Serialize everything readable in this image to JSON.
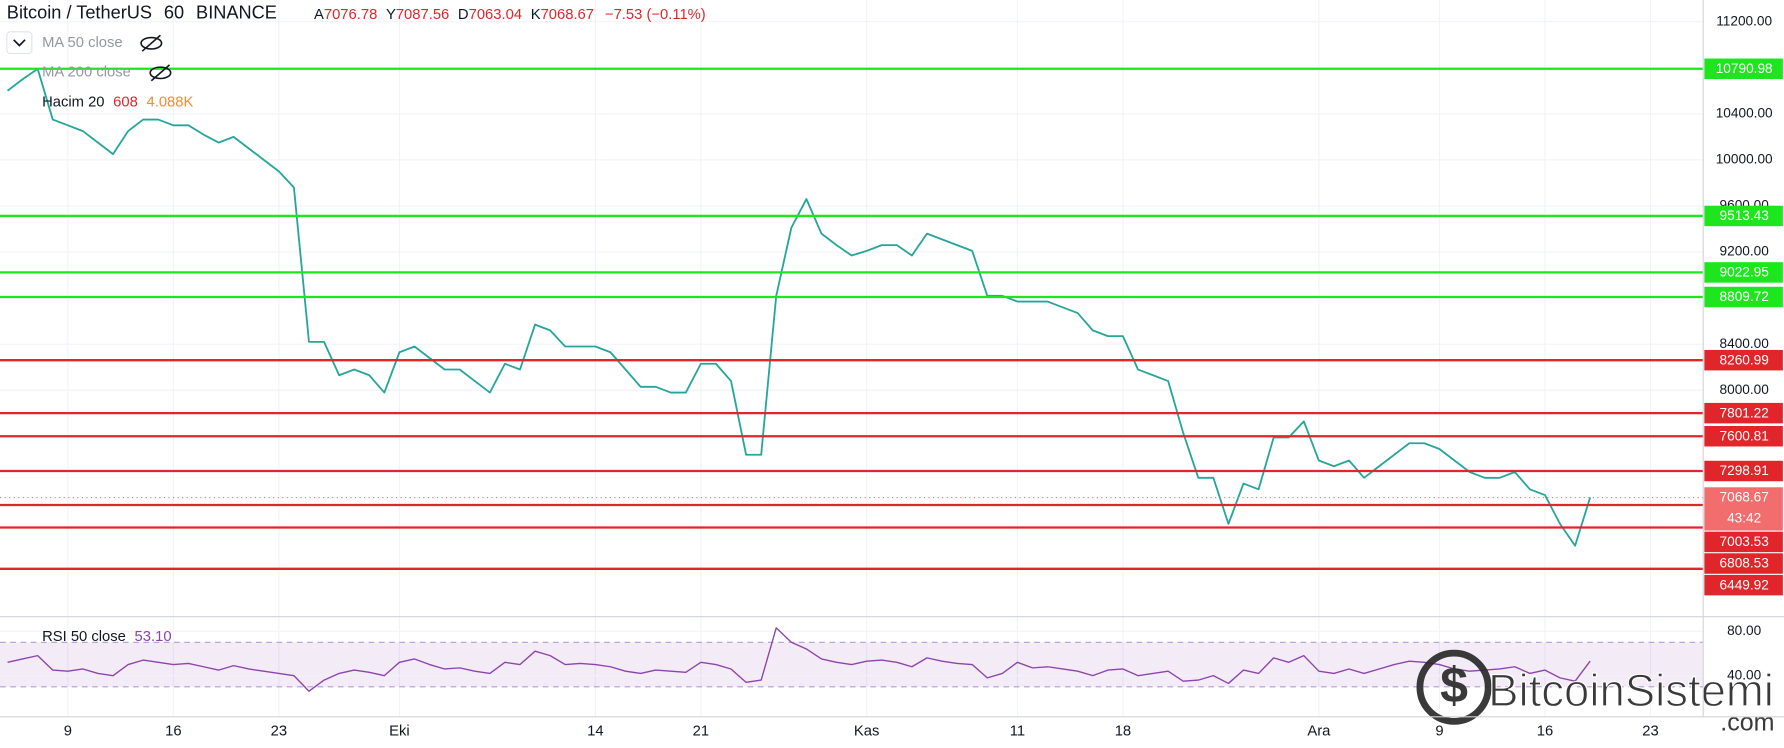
{
  "header": {
    "symbol": "Bitcoin / TetherUS",
    "interval": "60",
    "exchange": "BINANCE",
    "ohlc": [
      {
        "label": "A",
        "value": 7076.78
      },
      {
        "label": "Y",
        "value": 7087.56
      },
      {
        "label": "D",
        "value": 7063.04
      },
      {
        "label": "K",
        "value": 7068.67
      }
    ],
    "change": "−7.53 (−0.11%)"
  },
  "indicators": [
    {
      "name": "MA 50 close"
    },
    {
      "name": "MA 200 close"
    },
    {
      "name": "Hacim 20",
      "values": [
        "608",
        "4.088K"
      ]
    }
  ],
  "watermark": {
    "name": "BitcoinSistemi",
    "suffix": ".com"
  },
  "chart_data": [
    {
      "type": "line",
      "color": "#26a69a",
      "categories": [
        null,
        null,
        null,
        null,
        "9",
        null,
        null,
        null,
        null,
        null,
        null,
        "16",
        null,
        null,
        null,
        null,
        null,
        null,
        "23",
        null,
        null,
        null,
        null,
        null,
        null,
        null,
        "Eki",
        null,
        null,
        null,
        null,
        null,
        null,
        null,
        null,
        null,
        null,
        null,
        null,
        "14",
        null,
        null,
        null,
        null,
        null,
        null,
        "21",
        null,
        null,
        null,
        null,
        null,
        null,
        null,
        null,
        null,
        null,
        "Kas",
        null,
        null,
        null,
        null,
        null,
        null,
        null,
        null,
        null,
        "11",
        null,
        null,
        null,
        null,
        null,
        null,
        "18",
        null,
        null,
        null,
        null,
        null,
        null,
        null,
        null,
        null,
        null,
        null,
        null,
        "Ara",
        null,
        null,
        null,
        null,
        null,
        null,
        null,
        "9",
        null,
        null,
        null,
        null,
        null,
        null,
        "16",
        null,
        null,
        null,
        null,
        null,
        null,
        "23",
        null,
        null,
        null
      ],
      "values": [
        10600,
        10700,
        10790,
        10350,
        10300,
        10250,
        10150,
        10050,
        10250,
        10350,
        10350,
        10300,
        10300,
        10220,
        10150,
        10200,
        10100,
        10000,
        9900,
        9760,
        8420,
        8420,
        8130,
        8180,
        8130,
        7980,
        8330,
        8380,
        8280,
        8180,
        8180,
        8080,
        7980,
        8230,
        8180,
        8570,
        8520,
        8380,
        8380,
        8380,
        8330,
        8180,
        8030,
        8030,
        7980,
        7980,
        8230,
        8230,
        8080,
        7440,
        7440,
        8820,
        9410,
        9660,
        9360,
        9260,
        9170,
        9210,
        9260,
        9260,
        9170,
        9360,
        9310,
        9260,
        9210,
        8820,
        8820,
        8770,
        8770,
        8770,
        8720,
        8670,
        8520,
        8470,
        8470,
        8180,
        8130,
        8080,
        7630,
        7240,
        7240,
        6840,
        7190,
        7140,
        7590,
        7590,
        7730,
        7390,
        7340,
        7390,
        7240,
        7340,
        7440,
        7540,
        7540,
        7490,
        7390,
        7290,
        7240,
        7240,
        7290,
        7140,
        7090,
        6840,
        6650,
        7070,
        null,
        null,
        null,
        null,
        null,
        null,
        null
      ],
      "ylim": [
        6044,
        11388
      ],
      "yticks": [
        {
          "value": 11200,
          "label": "11200.00"
        },
        {
          "value": 10400,
          "label": "10400.00"
        },
        {
          "value": 10000,
          "label": "10000.00"
        },
        {
          "value": 9600,
          "label": "9600.00"
        },
        {
          "value": 9200,
          "label": "9200.00"
        },
        {
          "value": 8400,
          "label": "8400.00"
        },
        {
          "value": 8000,
          "label": "8000.00"
        }
      ],
      "grid": true,
      "levels": [
        {
          "value": 10790.98,
          "color": "#1ee61e"
        },
        {
          "value": 9513.43,
          "color": "#1ee61e"
        },
        {
          "value": 9022.95,
          "color": "#1ee61e"
        },
        {
          "value": 8809.72,
          "color": "#1ee61e"
        },
        {
          "value": 8260.99,
          "color": "#e0262b"
        },
        {
          "value": 7801.22,
          "color": "#e0262b"
        },
        {
          "value": 7600.81,
          "color": "#e0262b"
        },
        {
          "value": 7298.91,
          "color": "#e0262b"
        },
        {
          "value": 7003.53,
          "color": "#e0262b"
        },
        {
          "value": 6808.53,
          "color": "#e0262b"
        },
        {
          "value": 6449.92,
          "color": "#e0262b"
        }
      ],
      "last_price": 7068.67,
      "last_color": "#f26d6d",
      "countdown": "43:42"
    },
    {
      "type": "line",
      "title": "RSI 50 close",
      "last_value": "53.10",
      "color": "#8e44ad",
      "values": [
        52,
        55,
        58,
        45,
        44,
        46,
        42,
        40,
        50,
        54,
        52,
        50,
        51,
        48,
        45,
        49,
        46,
        44,
        42,
        40,
        26,
        36,
        42,
        45,
        43,
        40,
        52,
        55,
        50,
        46,
        47,
        44,
        42,
        52,
        50,
        62,
        58,
        50,
        51,
        50,
        48,
        44,
        42,
        45,
        44,
        43,
        52,
        50,
        46,
        34,
        36,
        83,
        70,
        64,
        55,
        52,
        50,
        53,
        54,
        52,
        48,
        56,
        53,
        51,
        50,
        38,
        42,
        52,
        47,
        48,
        46,
        44,
        40,
        45,
        46,
        40,
        42,
        44,
        35,
        36,
        40,
        33,
        45,
        42,
        56,
        52,
        58,
        44,
        42,
        46,
        42,
        46,
        50,
        53,
        52,
        50,
        46,
        44,
        45,
        46,
        48,
        42,
        45,
        38,
        35,
        53.1,
        null,
        null,
        null,
        null,
        null,
        null,
        null
      ],
      "ylim": [
        4,
        92
      ],
      "yticks": [
        {
          "value": 80,
          "label": "80.00"
        },
        {
          "value": 40,
          "label": "40.00"
        }
      ],
      "band": [
        30,
        70
      ]
    }
  ]
}
